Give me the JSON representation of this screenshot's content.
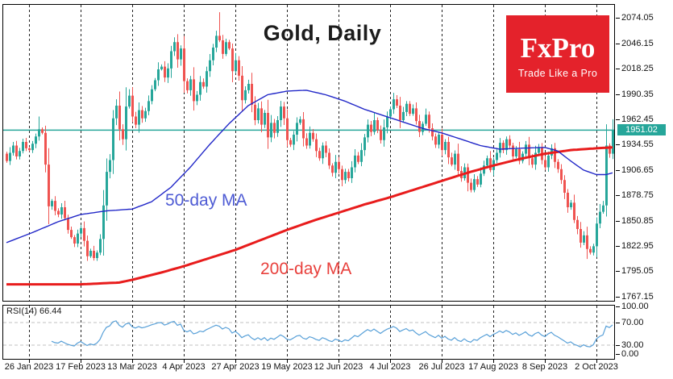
{
  "title": "Gold, Daily",
  "logo": {
    "name": "FxPro",
    "tagline": "Trade Like a Pro",
    "bg_color": "#e4222b"
  },
  "annotations": {
    "ma50_label": "50-day MA",
    "ma200_label": "200-day MA"
  },
  "rsi_panel": {
    "label": "RSI(14) 66.44",
    "ticks": [
      {
        "text": "100.00",
        "value": 100
      },
      {
        "text": "70.00",
        "value": 70
      },
      {
        "text": "30.00",
        "value": 30
      },
      {
        "text": "0.00",
        "value": 0
      }
    ],
    "dashed_levels": [
      70,
      30
    ]
  },
  "price_scale": {
    "ticks": [
      "2074.05",
      "2046.15",
      "2018.25",
      "1990.35",
      "1962.45",
      "1934.55",
      "1906.65",
      "1878.75",
      "1850.85",
      "1822.95",
      "1795.05",
      "1767.15"
    ],
    "current": "1951.02"
  },
  "chart_data": {
    "type": "candlestick",
    "title": "Gold, Daily",
    "x_tick_labels": [
      "26 Jan 2023",
      "17 Feb 2023",
      "13 Mar 2023",
      "4 Apr 2023",
      "27 Apr 2023",
      "19 May 2023",
      "12 Jun 2023",
      "4 Jul 2023",
      "26 Jul 2023",
      "17 Aug 2023",
      "8 Sep 2023",
      "2 Oct 2023"
    ],
    "x_tick_indices": [
      7,
      23,
      39,
      55,
      71,
      87,
      103,
      119,
      135,
      151,
      167,
      183
    ],
    "price_axis_ticks": [
      2074.05,
      2046.15,
      2018.25,
      1990.35,
      1962.45,
      1934.55,
      1906.65,
      1878.75,
      1850.85,
      1822.95,
      1795.05,
      1767.15
    ],
    "price_range": [
      1762,
      2090
    ],
    "current_price": 1951.02,
    "first_open": 1925,
    "closes": [
      1917,
      1926,
      1934,
      1922,
      1928,
      1938,
      1931,
      1929,
      1936,
      1944,
      1952,
      1948,
      1913,
      1867,
      1873,
      1862,
      1858,
      1866,
      1854,
      1841,
      1833,
      1826,
      1837,
      1843,
      1829,
      1812,
      1818,
      1810,
      1816,
      1831,
      1868,
      1905,
      1918,
      1964,
      1978,
      1952,
      1941,
      1977,
      1989,
      1966,
      1957,
      1973,
      1964,
      1972,
      1983,
      1996,
      2006,
      2018,
      2021,
      2009,
      2019,
      2038,
      2048,
      2029,
      2041,
      2005,
      1995,
      2007,
      1983,
      1990,
      2004,
      1999,
      2016,
      2028,
      2042,
      2055,
      2050,
      2035,
      2048,
      2041,
      2016,
      2028,
      2011,
      1984,
      1995,
      2002,
      1979,
      1962,
      1975,
      1957,
      1970,
      1943,
      1959,
      1948,
      1962,
      1977,
      1964,
      1940,
      1935,
      1946,
      1959,
      1963,
      1942,
      1934,
      1948,
      1941,
      1928,
      1920,
      1934,
      1926,
      1912,
      1904,
      1916,
      1908,
      1896,
      1905,
      1898,
      1910,
      1923,
      1916,
      1929,
      1943,
      1957,
      1949,
      1962,
      1951,
      1940,
      1954,
      1966,
      1974,
      1985,
      1978,
      1962,
      1971,
      1980,
      1969,
      1975,
      1961,
      1949,
      1958,
      1968,
      1953,
      1944,
      1935,
      1946,
      1929,
      1938,
      1921,
      1913,
      1925,
      1906,
      1898,
      1910,
      1893,
      1885,
      1897,
      1891,
      1903,
      1912,
      1920,
      1907,
      1918,
      1926,
      1937,
      1929,
      1941,
      1934,
      1922,
      1930,
      1917,
      1925,
      1935,
      1920,
      1913,
      1926,
      1932,
      1918,
      1910,
      1923,
      1931,
      1916,
      1908,
      1896,
      1882,
      1866,
      1871,
      1852,
      1842,
      1827,
      1835,
      1820,
      1816,
      1823,
      1848,
      1861,
      1868,
      1934,
      1925,
      1951.02
    ],
    "wick_overrides": {
      "10": {
        "high": 1966
      },
      "66": {
        "high": 2081
      },
      "180": {
        "low": 1809
      },
      "188": {
        "high": 1963
      }
    },
    "series": [
      {
        "name": "50-day MA",
        "points": [
          [
            0,
            1827
          ],
          [
            8,
            1838
          ],
          [
            16,
            1850
          ],
          [
            23,
            1858
          ],
          [
            31,
            1862
          ],
          [
            39,
            1864
          ],
          [
            45,
            1872
          ],
          [
            51,
            1888
          ],
          [
            57,
            1910
          ],
          [
            63,
            1935
          ],
          [
            69,
            1958
          ],
          [
            75,
            1978
          ],
          [
            81,
            1990
          ],
          [
            87,
            1994
          ],
          [
            93,
            1995
          ],
          [
            99,
            1990
          ],
          [
            105,
            1983
          ],
          [
            111,
            1974
          ],
          [
            117,
            1967
          ],
          [
            123,
            1960
          ],
          [
            129,
            1953
          ],
          [
            135,
            1948
          ],
          [
            141,
            1941
          ],
          [
            147,
            1934
          ],
          [
            153,
            1930
          ],
          [
            159,
            1931
          ],
          [
            167,
            1932
          ],
          [
            171,
            1928
          ],
          [
            175,
            1917
          ],
          [
            179,
            1907
          ],
          [
            183,
            1902
          ],
          [
            186,
            1902
          ],
          [
            188,
            1904
          ]
        ]
      },
      {
        "name": "200-day MA",
        "points": [
          [
            0,
            1781
          ],
          [
            23,
            1781
          ],
          [
            35,
            1783
          ],
          [
            39,
            1786
          ],
          [
            48,
            1794
          ],
          [
            55,
            1801
          ],
          [
            63,
            1810
          ],
          [
            71,
            1819
          ],
          [
            79,
            1830
          ],
          [
            87,
            1841
          ],
          [
            95,
            1851
          ],
          [
            103,
            1860
          ],
          [
            111,
            1869
          ],
          [
            119,
            1877
          ],
          [
            127,
            1886
          ],
          [
            135,
            1895
          ],
          [
            143,
            1904
          ],
          [
            151,
            1912
          ],
          [
            159,
            1919
          ],
          [
            167,
            1925
          ],
          [
            175,
            1929
          ],
          [
            183,
            1931
          ],
          [
            188,
            1932
          ]
        ]
      }
    ],
    "rsi": {
      "period": 14,
      "last_value": 66.44
    },
    "colors": {
      "up": "#26a69a",
      "down": "#ef5350",
      "ma50": "#2228c8",
      "ma200": "#e81c1c",
      "rsi_line": "#58a0d8",
      "current_line": "#26a69a",
      "current_badge_bg": "#26a69a",
      "grid": "#222222",
      "rsi_level": "#c0c0c0"
    }
  }
}
